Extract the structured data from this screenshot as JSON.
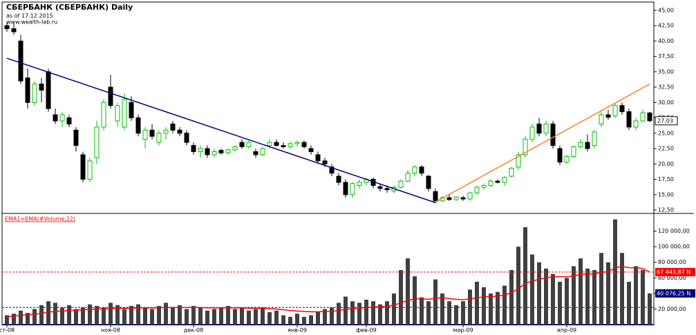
{
  "chart_data": [
    {
      "type": "candlestick",
      "title": "СБЕРБАНК (СБЕРБАНК) Daily",
      "subtitle": "as of 17.12.2015",
      "source": "www.wealth-lab.ru",
      "categories": [
        "ст-08",
        null,
        null,
        null,
        null,
        null,
        null,
        null,
        null,
        null,
        null,
        null,
        null,
        null,
        null,
        "ноя-08",
        null,
        null,
        null,
        null,
        null,
        null,
        null,
        null,
        null,
        null,
        null,
        "дек-08",
        null,
        null,
        null,
        null,
        null,
        null,
        null,
        null,
        null,
        null,
        null,
        null,
        null,
        null,
        "янв-09",
        null,
        null,
        null,
        null,
        null,
        null,
        null,
        null,
        null,
        "фев-09",
        null,
        null,
        null,
        null,
        null,
        null,
        null,
        null,
        null,
        null,
        null,
        null,
        null,
        "мар-09",
        null,
        null,
        null,
        null,
        null,
        null,
        null,
        null,
        null,
        null,
        null,
        null,
        null,
        null,
        "апр-09",
        null,
        null,
        null,
        null,
        null,
        null,
        null,
        null,
        null,
        null,
        null,
        null
      ],
      "open": [
        42.5,
        42,
        40,
        34,
        30,
        33,
        35,
        28,
        27,
        27.5,
        25.5,
        21.5,
        17.5,
        21,
        26,
        32.5,
        27,
        26,
        30,
        27.5,
        24,
        25.5,
        23.5,
        25,
        26.5,
        25.5,
        25,
        23,
        22,
        22.5,
        21.5,
        22.2,
        21.8,
        22.3,
        23.5,
        22.8,
        22,
        21.5,
        23,
        23.5,
        23,
        22.8,
        23.3,
        23.5,
        22.5,
        21.5,
        20.5,
        19.5,
        18,
        17,
        15,
        16.5,
        17,
        17.5,
        16.3,
        16,
        15.6,
        16.2,
        17.2,
        18.5,
        19.5,
        18,
        15.5,
        14,
        14.5,
        14.2,
        14.5,
        14.3,
        15.3,
        16.2,
        16.5,
        17.2,
        17,
        18,
        19.5,
        21.5,
        24,
        26.5,
        25,
        26.5,
        22.5,
        20.3,
        21.2,
        22.8,
        23.5,
        23,
        26.5,
        28,
        27.8,
        29.5,
        28.5,
        26,
        27,
        28.3
      ],
      "high": [
        43,
        43,
        41,
        35.5,
        33.5,
        34,
        35.5,
        29,
        28.5,
        28,
        26,
        22,
        21,
        27,
        30.5,
        34.5,
        30,
        31.5,
        31,
        28,
        26,
        26.5,
        25.5,
        26,
        27,
        26,
        25.5,
        23.5,
        23,
        23,
        22.5,
        22.5,
        22.5,
        23,
        24,
        23.8,
        22.5,
        22.8,
        24,
        24,
        23.5,
        23.6,
        23.8,
        23.8,
        23,
        22,
        21,
        20,
        18.5,
        17.5,
        17,
        17.5,
        17.8,
        17.8,
        16.8,
        16.5,
        16.5,
        17.5,
        19,
        19.8,
        19.8,
        18.2,
        16,
        14.8,
        15,
        14.8,
        14.8,
        15.5,
        16.5,
        16.8,
        17.5,
        17.5,
        18,
        19.5,
        22,
        24.5,
        26.5,
        27.5,
        27,
        27,
        23,
        21.5,
        23,
        24,
        24.8,
        25.5,
        28.5,
        28.8,
        29.8,
        30,
        29,
        27.5,
        28.8,
        28.5
      ],
      "low": [
        41.5,
        41,
        33,
        29,
        29.5,
        30,
        28.5,
        26.5,
        26,
        26,
        22,
        17,
        17,
        20,
        25.5,
        29,
        26,
        25.5,
        27,
        24.5,
        22.5,
        24,
        23,
        24,
        25,
        24.5,
        23,
        21.5,
        21,
        21,
        21,
        21.5,
        21.5,
        22,
        22.5,
        22.5,
        21,
        21.3,
        22.5,
        22.8,
        22.5,
        22.5,
        22.8,
        22.5,
        21.5,
        20,
        19.5,
        18,
        16.5,
        14.5,
        14.5,
        16,
        16.5,
        16,
        15.5,
        15.3,
        15.2,
        16,
        17,
        18,
        18,
        15.5,
        13.6,
        13.8,
        14,
        14,
        14,
        14,
        15,
        15.8,
        16.2,
        16.8,
        16.5,
        17.8,
        19,
        21,
        23.5,
        24.5,
        24.5,
        22.5,
        19.8,
        20,
        21,
        22.5,
        22,
        22.5,
        26,
        27.2,
        27.5,
        28,
        25.5,
        25.5,
        26.8,
        26.8
      ],
      "close": [
        42,
        41.5,
        33.5,
        30,
        33,
        32,
        29,
        27,
        28,
        26.5,
        23,
        17.5,
        20.5,
        26,
        30,
        29.5,
        29.5,
        30.5,
        27.5,
        25,
        25.5,
        24.5,
        25,
        25.5,
        25.5,
        25,
        23.5,
        22,
        22.5,
        21.5,
        22,
        21.8,
        22.3,
        22.8,
        22.8,
        23.5,
        21.5,
        22.5,
        23.5,
        23,
        22.8,
        23.3,
        23.5,
        22.8,
        22,
        20.5,
        20,
        18.5,
        17,
        15,
        16.8,
        17,
        17.5,
        16.5,
        16,
        15.8,
        16.2,
        17.2,
        18.5,
        19.5,
        18.5,
        16,
        14,
        14.5,
        14.2,
        14.6,
        14.3,
        15.3,
        16.2,
        16.5,
        17.2,
        17,
        17.8,
        19.3,
        21.5,
        24,
        26,
        25,
        26.5,
        23,
        20.3,
        21.2,
        22.8,
        23.5,
        22.5,
        25.2,
        28,
        27.6,
        29.5,
        28.5,
        26,
        27,
        28.3,
        27.03
      ],
      "last_label": "27,03",
      "up_color": "#00c000",
      "down_color": "#000000",
      "trendlines": [
        {
          "color": "#000080",
          "start": [
            0,
            37.2
          ],
          "end": [
            62,
            13.7
          ]
        },
        {
          "color": "#ff7f27",
          "start": [
            62,
            13.8
          ],
          "end": [
            93,
            33
          ]
        }
      ],
      "ylim": [
        12,
        46
      ],
      "yticks": [
        {
          "value": 12.5,
          "label": "12,50"
        },
        {
          "value": 15,
          "label": "15,00"
        },
        {
          "value": 17.5,
          "label": "17,50"
        },
        {
          "value": 20,
          "label": "20,00"
        },
        {
          "value": 22.5,
          "label": "22,50"
        },
        {
          "value": 25,
          "label": "25,00"
        },
        {
          "value": 27.5,
          "label": "27,50"
        },
        {
          "value": 30,
          "label": "30,00"
        },
        {
          "value": 32.5,
          "label": "32,50"
        },
        {
          "value": 35,
          "label": "35,00"
        },
        {
          "value": 37.5,
          "label": "37,50"
        },
        {
          "value": 40,
          "label": "40,00"
        },
        {
          "value": 42.5,
          "label": "42,50"
        },
        {
          "value": 45,
          "label": "45,00"
        }
      ]
    },
    {
      "type": "bar",
      "legend": "EMA1=EMA(#Volume,22)",
      "series": [
        {
          "name": "Volume",
          "color": "#404040",
          "values": [
            12000,
            14000,
            18000,
            15000,
            20000,
            25000,
            30000,
            28000,
            22000,
            25000,
            20000,
            22000,
            26000,
            24000,
            22000,
            28000,
            25000,
            20000,
            24000,
            26000,
            22000,
            20000,
            24000,
            28000,
            22000,
            25000,
            20000,
            24000,
            22000,
            18000,
            20000,
            22000,
            24000,
            20000,
            22000,
            18000,
            20000,
            22000,
            16000,
            18000,
            12000,
            10000,
            14000,
            10000,
            12000,
            16000,
            20000,
            22000,
            28000,
            36000,
            30000,
            28000,
            32000,
            30000,
            26000,
            30000,
            40000,
            70000,
            85000,
            62000,
            35000,
            30000,
            58000,
            40000,
            30000,
            25000,
            30000,
            45000,
            55000,
            48000,
            40000,
            42000,
            50000,
            70000,
            100000,
            125000,
            90000,
            80000,
            72000,
            65000,
            55000,
            60000,
            75000,
            85000,
            72000,
            70000,
            92000,
            80000,
            135000,
            92000,
            55000,
            75000,
            70000,
            40076.25
          ],
          "last_label": "40 076,25 N",
          "label_color": "#000080"
        },
        {
          "name": "EMA1",
          "color": "#ff0000",
          "values": [
            10000,
            11000,
            12000,
            12500,
            13500,
            14500,
            16000,
            17000,
            17500,
            18000,
            18500,
            19000,
            19500,
            20000,
            20000,
            20500,
            21000,
            21000,
            21000,
            21500,
            21500,
            21500,
            21500,
            22000,
            22000,
            22000,
            22000,
            22000,
            22000,
            21500,
            21500,
            21500,
            21500,
            21500,
            21500,
            21000,
            21000,
            21000,
            20500,
            20000,
            19000,
            18000,
            17500,
            17000,
            16500,
            16500,
            16800,
            17200,
            18000,
            19500,
            20500,
            21000,
            22000,
            22500,
            23000,
            23500,
            25000,
            28000,
            31000,
            33000,
            33000,
            32500,
            34000,
            34500,
            33500,
            32500,
            32000,
            33000,
            34500,
            35500,
            36000,
            36500,
            38000,
            41000,
            46000,
            53000,
            56000,
            58000,
            60000,
            61500,
            61500,
            61500,
            62500,
            64500,
            65000,
            65000,
            67000,
            68000,
            73000,
            74500,
            73000,
            73000,
            72000,
            67443.87
          ],
          "last_label": "67 443,87 N",
          "label_color": "#ff0000"
        }
      ],
      "reference_lines": [
        {
          "value": 22000,
          "color": "#000080"
        }
      ],
      "ylim": [
        0,
        140000
      ],
      "yticks": [
        {
          "value": 20000,
          "label": "20 000,00"
        },
        {
          "value": 40000,
          "label": "40 000,00"
        },
        {
          "value": 60000,
          "label": "60 000,00"
        },
        {
          "value": 80000,
          "label": "80 000,00"
        },
        {
          "value": 100000,
          "label": "100 000,00"
        },
        {
          "value": 120000,
          "label": "120 000,00"
        }
      ]
    }
  ]
}
